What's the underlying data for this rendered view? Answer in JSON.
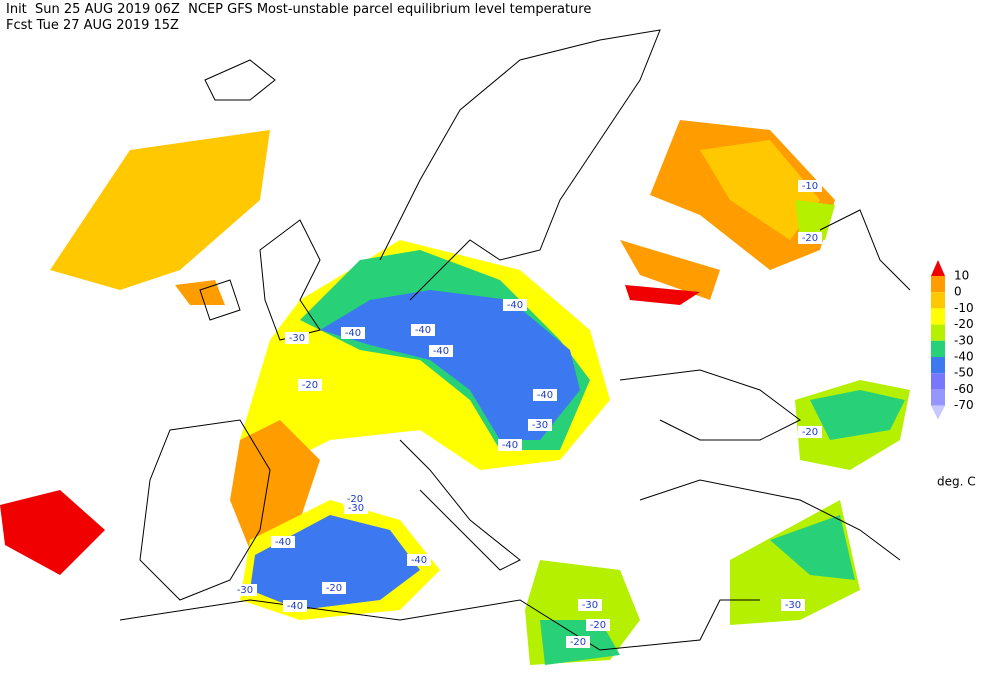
{
  "header": {
    "line1": "Init  Sun 25 AUG 2019 06Z  NCEP GFS Most-unstable parcel equilibrium level temperature",
    "line2": "Fcst Tue 27 AUG 2019 15Z"
  },
  "legend": {
    "labels": [
      "10",
      "0",
      "-10",
      "-20",
      "-30",
      "-40",
      "-50",
      "-60",
      "-70"
    ],
    "colors": [
      "#f00000",
      "#ff9c00",
      "#ffc800",
      "#ffff00",
      "#b4f000",
      "#28d078",
      "#3c78f0",
      "#7878ff",
      "#9696ff",
      "#c8c8ff"
    ],
    "unit": "deg. C"
  },
  "contour_labels": [
    "-10",
    "-20",
    "-40",
    "-40",
    "-40",
    "-30",
    "-40",
    "-20",
    "-40",
    "-30",
    "-40",
    "-20",
    "-20",
    "-30",
    "-40",
    "-40",
    "-20",
    "-30",
    "-40",
    "-30",
    "-20",
    "-20",
    "-30"
  ]
}
